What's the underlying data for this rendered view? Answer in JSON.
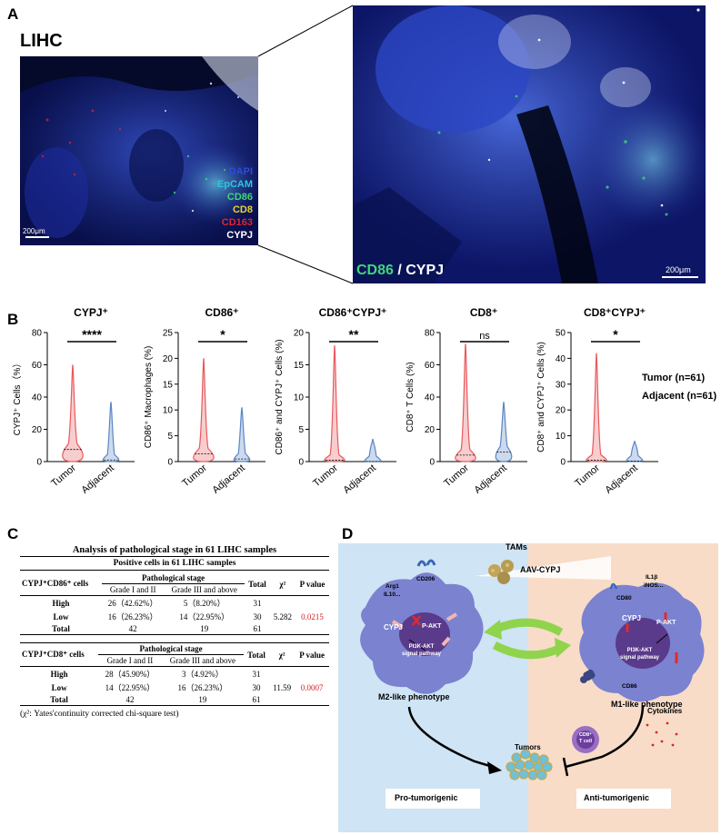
{
  "panel_a": {
    "letter": "A",
    "cancer": "LIHC",
    "legend": [
      {
        "label": "DAPI",
        "color": "#2d4bd8"
      },
      {
        "label": "EpCAM",
        "color": "#2fc6dc"
      },
      {
        "label": "CD86",
        "color": "#3ed67a"
      },
      {
        "label": "CD8",
        "color": "#e8d431"
      },
      {
        "label": "CD163",
        "color": "#e0262a"
      },
      {
        "label": "CYPJ",
        "color": "#ffffff"
      }
    ],
    "scalebar_small": "200μm",
    "scalebar_large": "200μm",
    "zoom_label_cd86": "CD86",
    "zoom_label_sep": " / ",
    "zoom_label_cypj": "CYPJ",
    "zoom_cd86_color": "#3ed67a"
  },
  "panel_b": {
    "letter": "B",
    "group_labels": [
      "Tumor",
      "Adjacent"
    ],
    "tumor_color": "#e8595c",
    "adjacent_color": "#5a86c4",
    "legend_text": [
      "Tumor (n=61)",
      "Adjacent (n=61)"
    ]
  },
  "chart_data": [
    {
      "type": "violin",
      "title": "CYPJ⁺",
      "ylabel": "CYPJ⁺ Cells（%）",
      "ylim": [
        0,
        80
      ],
      "yticks": [
        "0",
        "20",
        "40",
        "60",
        "80"
      ],
      "categories": [
        "Tumor",
        "Adjacent"
      ],
      "max": [
        60,
        37
      ],
      "median": [
        7.5,
        1
      ],
      "significance": "****"
    },
    {
      "type": "violin",
      "title": "CD86⁺",
      "ylabel": "CD86⁺ Macrophages (%)",
      "ylim": [
        0,
        25
      ],
      "yticks": [
        "0",
        "5",
        "10",
        "15",
        "20",
        "25"
      ],
      "categories": [
        "Tumor",
        "Adjacent"
      ],
      "max": [
        20,
        10.5
      ],
      "median": [
        1.5,
        0.5
      ],
      "significance": "*"
    },
    {
      "type": "violin",
      "title": "CD86⁺CYPJ⁺",
      "ylabel": "CD86⁺ and CYPJ⁺ Cells (%)",
      "ylim": [
        0,
        20
      ],
      "yticks": [
        "0",
        "5",
        "10",
        "15",
        "20"
      ],
      "categories": [
        "Tumor",
        "Adjacent"
      ],
      "max": [
        18,
        3.5
      ],
      "median": [
        0.2,
        0
      ],
      "significance": "**"
    },
    {
      "type": "violin",
      "title": "CD8⁺",
      "ylabel": "CD8⁺ T Cells (%)",
      "ylim": [
        0,
        80
      ],
      "yticks": [
        "0",
        "20",
        "40",
        "60",
        "80"
      ],
      "categories": [
        "Tumor",
        "Adjacent"
      ],
      "max": [
        73,
        37
      ],
      "median": [
        4,
        6
      ],
      "significance": "ns"
    },
    {
      "type": "violin",
      "title": "CD8⁺CYPJ⁺",
      "ylabel": "CD8⁺ and CYPJ⁺ Cells (%)",
      "ylim": [
        0,
        50
      ],
      "yticks": [
        "0",
        "10",
        "20",
        "30",
        "40",
        "50"
      ],
      "categories": [
        "Tumor",
        "Adjacent"
      ],
      "max": [
        42,
        8
      ],
      "median": [
        0.5,
        0.2
      ],
      "significance": "*"
    }
  ],
  "panel_c": {
    "letter": "C",
    "title": "Analysis of pathological stage in 61 LIHC samples",
    "subtitle": "Positive cells in 61 LIHC samples",
    "tables": [
      {
        "row_head": "CYPJ⁺CD86⁺ cells",
        "stage_head": "Pathological stage",
        "col1": "Grade I and II",
        "col2": "Grade III and above",
        "total_head": "Total",
        "chi_head": "χ²",
        "p_head": "P value",
        "rows": [
          {
            "label": "High",
            "c1": "26（42.62%）",
            "c2": "5（8.20%）",
            "total": "31",
            "chi": "",
            "p": ""
          },
          {
            "label": "Low",
            "c1": "16（26.23%）",
            "c2": "14（22.95%）",
            "total": "30",
            "chi": "5.282",
            "p": "0.0215"
          },
          {
            "label": "Total",
            "c1": "42",
            "c2": "19",
            "total": "61",
            "chi": "",
            "p": ""
          }
        ]
      },
      {
        "row_head": "CYPJ⁺CD8⁺ cells",
        "stage_head": "Pathological stage",
        "col1": "Grade I and II",
        "col2": "Grade III and above",
        "total_head": "Total",
        "chi_head": "χ²",
        "p_head": "P value",
        "rows": [
          {
            "label": "High",
            "c1": "28（45.90%）",
            "c2": "3（4.92%）",
            "total": "31",
            "chi": "",
            "p": ""
          },
          {
            "label": "Low",
            "c1": "14（22.95%）",
            "c2": "16（26.23%）",
            "total": "30",
            "chi": "11.59",
            "p": "0.0007"
          },
          {
            "label": "Total",
            "c1": "42",
            "c2": "19",
            "total": "61",
            "chi": "",
            "p": ""
          }
        ]
      }
    ],
    "footnote": "(χ²: Yates'continuity corrected chi-square test)"
  },
  "panel_d": {
    "letter": "D",
    "tams": "TAMs",
    "aav": "AAV-CYPJ",
    "m2": {
      "arg1": "Arg1",
      "il10": "IL10...",
      "cd206": "CD206",
      "cypj": "CYPJ",
      "pakt": "P-AKT",
      "pathway1": "PI3K-AKT",
      "pathway2": "signal pathway",
      "label": "M2-like phenotype"
    },
    "m1": {
      "il1b": "IL1β",
      "inos": "iNOS...",
      "cd80": "CD80",
      "cypj": "CYPJ",
      "pakt": "P-AKT",
      "pathway1": "PI3K-AKT",
      "pathway2": "signal pathway",
      "cd86": "CD86",
      "label": "M1-like phenotype"
    },
    "tumors": "Tumors",
    "cd8_line1": "CD8⁺",
    "cd8_line2": "T cell",
    "cytokines": "Cytokines",
    "pro": "Pro-tumorigenic",
    "anti": "Anti-tumorigenic",
    "colors": {
      "left_bg": "#cfe4f4",
      "right_bg": "#f8dcc8",
      "arrow_green": "#8fd44c",
      "cell_purple": "#7b82d0",
      "nucleus": "#5a3a8a"
    }
  }
}
